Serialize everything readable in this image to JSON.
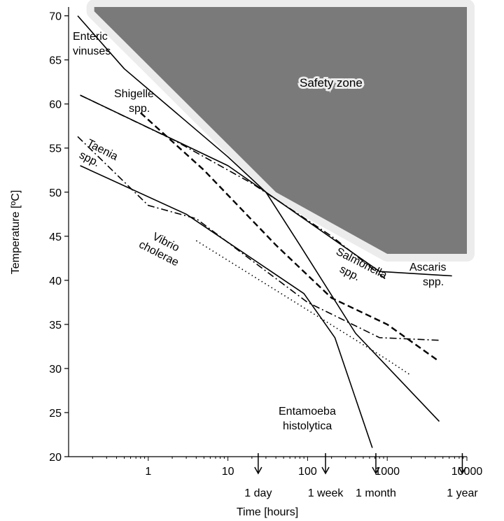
{
  "chart_data": {
    "type": "line",
    "title": "",
    "xlabel": "Time [hours]",
    "ylabel": "Temperature [ºC]",
    "xscale": "log",
    "xlim": [
      0.1,
      10000
    ],
    "ylim": [
      20,
      71
    ],
    "x_ticks": [
      {
        "value": 1,
        "label": "1"
      },
      {
        "value": 10,
        "label": "10"
      },
      {
        "value": 100,
        "label": "100"
      },
      {
        "value": 1000,
        "label": "1000"
      },
      {
        "value": 10000,
        "label": "10000"
      }
    ],
    "y_ticks": [
      20,
      25,
      30,
      35,
      40,
      45,
      50,
      55,
      60,
      65,
      70
    ],
    "time_markers": [
      {
        "x": 24,
        "label": "1 day"
      },
      {
        "x": 168,
        "label": "1 week"
      },
      {
        "x": 720,
        "label": "1 month"
      },
      {
        "x": 8760,
        "label": "1 year"
      }
    ],
    "safety_zone": {
      "label": "Safety zone",
      "color": "#7a7a7a",
      "boundary": [
        [
          0.21,
          71
        ],
        [
          0.21,
          70.5
        ],
        [
          40,
          50
        ],
        [
          1000,
          43
        ],
        [
          10000,
          43
        ],
        [
          10000,
          71
        ]
      ]
    },
    "series": [
      {
        "name": "Enteric viruses",
        "style": "solid",
        "points": [
          [
            0.13,
            70
          ],
          [
            0.5,
            64
          ],
          [
            10,
            54
          ],
          [
            30,
            50
          ],
          [
            80,
            44
          ],
          [
            400,
            34
          ],
          [
            4500,
            24
          ]
        ]
      },
      {
        "name": "Shigelle spp.",
        "style": "dashed",
        "points": [
          [
            0.8,
            59
          ],
          [
            5,
            52.5
          ],
          [
            40,
            44
          ],
          [
            200,
            38
          ],
          [
            1000,
            35
          ],
          [
            4500,
            30.8
          ]
        ]
      },
      {
        "name": "Salmonella spp.",
        "style": "dashdot",
        "points": [
          [
            0.14,
            61
          ],
          [
            2,
            56
          ],
          [
            20,
            51
          ],
          [
            200,
            45
          ],
          [
            1000,
            40
          ]
        ]
      },
      {
        "name": "Ascaris spp.",
        "style": "solid",
        "points": [
          [
            0.14,
            61
          ],
          [
            10,
            53
          ],
          [
            800,
            41
          ],
          [
            6500,
            40.5
          ]
        ]
      },
      {
        "name": "Taenia spp.",
        "style": "dashdot",
        "points": [
          [
            0.13,
            56.3
          ],
          [
            1,
            48.5
          ],
          [
            4,
            47
          ],
          [
            100,
            37.5
          ],
          [
            800,
            33.5
          ],
          [
            4500,
            33.2
          ]
        ]
      },
      {
        "name": "Vibrio cholerae",
        "style": "dotted",
        "points": [
          [
            4,
            44.5
          ],
          [
            1000,
            31
          ],
          [
            2000,
            29.2
          ]
        ]
      },
      {
        "name": "Entamoeba histolytica",
        "style": "solid",
        "points": [
          [
            0.14,
            53
          ],
          [
            3,
            47.5
          ],
          [
            90,
            38.5
          ],
          [
            220,
            33.5
          ],
          [
            650,
            21
          ]
        ]
      }
    ],
    "annotations": [
      {
        "id": "enteric-line1",
        "text": "Enteric"
      },
      {
        "id": "enteric-line2",
        "text": "vinuses"
      },
      {
        "id": "shigelle-line1",
        "text": "Shigelle"
      },
      {
        "id": "shigelle-line2",
        "text": "spp."
      },
      {
        "id": "taenia-line1",
        "text": "Taenia"
      },
      {
        "id": "taenia-line2",
        "text": "spp."
      },
      {
        "id": "vibrio-line1",
        "text": "Vibrio"
      },
      {
        "id": "vibrio-line2",
        "text": "cholerae"
      },
      {
        "id": "salmonella-line1",
        "text": "Salmonella"
      },
      {
        "id": "salmonella-line2",
        "text": "spp."
      },
      {
        "id": "ascaris-line1",
        "text": "Ascaris"
      },
      {
        "id": "ascaris-line2",
        "text": "spp."
      },
      {
        "id": "entamoeba-line1",
        "text": "Entamoeba"
      },
      {
        "id": "entamoeba-line2",
        "text": "histolytica"
      }
    ]
  }
}
